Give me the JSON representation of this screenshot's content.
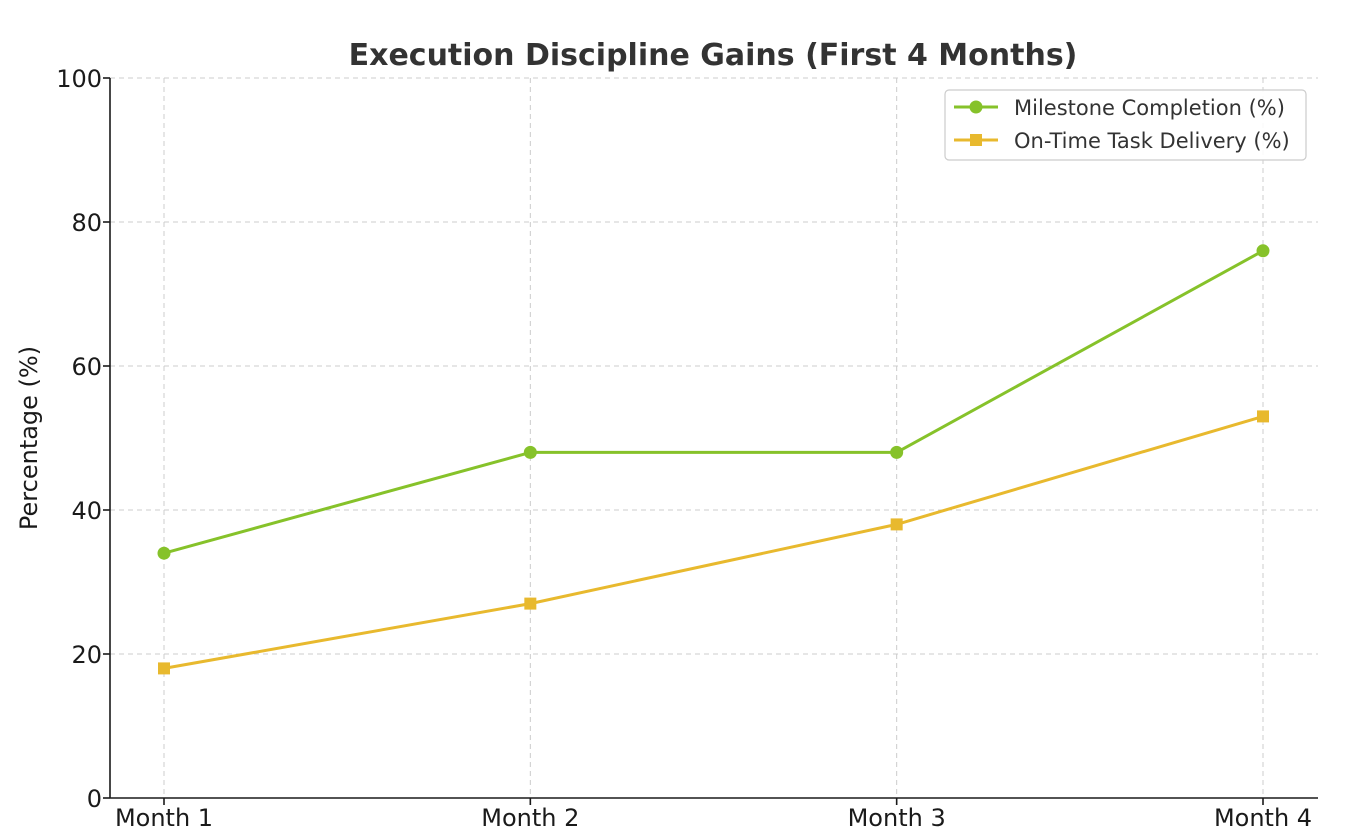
{
  "chart_data": {
    "type": "line",
    "title": "Execution Discipline Gains (First 4 Months)",
    "xlabel": "",
    "ylabel": "Percentage (%)",
    "categories": [
      "Month 1",
      "Month 2",
      "Month 3",
      "Month 4"
    ],
    "ylim": [
      0,
      100
    ],
    "yticks": [
      0,
      20,
      40,
      60,
      80,
      100
    ],
    "grid": true,
    "legend_position": "top-right",
    "series": [
      {
        "name": "Milestone Completion (%)",
        "values": [
          34,
          48,
          48,
          76
        ],
        "color": "#86c22a",
        "marker": "circle"
      },
      {
        "name": "On-Time Task Delivery (%)",
        "values": [
          18,
          27,
          38,
          53
        ],
        "color": "#e8b92e",
        "marker": "square"
      }
    ]
  }
}
